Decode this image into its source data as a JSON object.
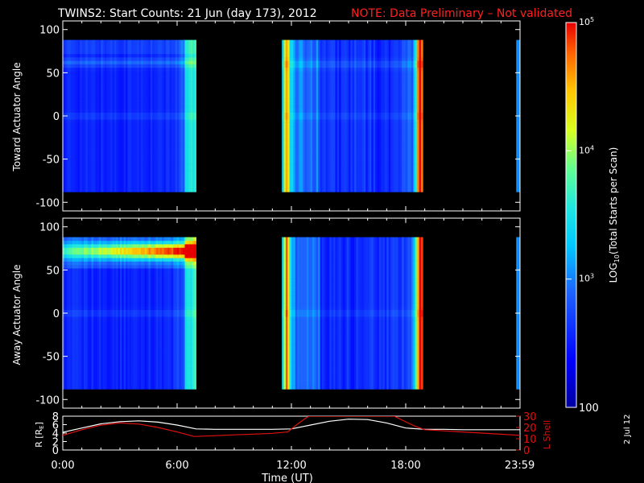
{
  "title": "TWINS2: Start Counts: 21 Jun (day 173), 2012",
  "note": "NOTE: Data Preliminary – Not validated",
  "date_stamp": "2 Jul 12",
  "colors": {
    "note": "#ff2020",
    "r_line": "#ffffff",
    "lshell_line": "#e01010",
    "background": "#000000",
    "frame": "#ffffff"
  },
  "colorbar": {
    "label": "LOG10(Total Starts per Scan)",
    "label_main": "LOG",
    "label_sub": "10",
    "label_rest": "(Total Starts per Scan)",
    "ticks": [
      {
        "value": 100,
        "label": "100"
      },
      {
        "value": 1000,
        "label": "10",
        "exp": "3"
      },
      {
        "value": 10000,
        "label": "10",
        "exp": "4"
      },
      {
        "value": 100000,
        "label": "10",
        "exp": "5"
      }
    ],
    "range": [
      100,
      100000
    ],
    "scale": "log"
  },
  "chart_data": [
    {
      "type": "heatmap",
      "panel": "toward",
      "ylabel": "Toward Actuator Angle",
      "ylim": [
        -110,
        110
      ],
      "yticks": [
        "100",
        "50",
        "0",
        "-50",
        "-100"
      ],
      "xlim": [
        0,
        24
      ],
      "angle_range": [
        -88,
        88
      ],
      "data_intervals": [
        {
          "start": 0.0,
          "end": 7.0
        },
        {
          "start": 11.5,
          "end": 18.9
        },
        {
          "start": 23.8,
          "end": 24.0
        }
      ],
      "log_counts": [
        {
          "time": 0.0,
          "angle": 0,
          "value": 2.6
        },
        {
          "time": 1.5,
          "angle": 60,
          "value": 2.9
        },
        {
          "time": 6.5,
          "angle": 0,
          "value": 3.2
        },
        {
          "time": 11.7,
          "angle": 0,
          "value": 4.6
        },
        {
          "time": 15.0,
          "angle": 0,
          "value": 2.6
        },
        {
          "time": 18.8,
          "angle": 0,
          "value": 4.7
        },
        {
          "time": 23.9,
          "angle": 0,
          "value": 3.0
        }
      ]
    },
    {
      "type": "heatmap",
      "panel": "away",
      "ylabel": "Away Actuator Angle",
      "ylim": [
        -110,
        110
      ],
      "yticks": [
        "100",
        "50",
        "0",
        "-50",
        "-100"
      ],
      "xlim": [
        0,
        24
      ],
      "angle_range": [
        -88,
        88
      ],
      "data_intervals": [
        {
          "start": 0.0,
          "end": 7.0
        },
        {
          "start": 11.5,
          "end": 18.9
        },
        {
          "start": 23.8,
          "end": 24.0
        }
      ],
      "log_counts": [
        {
          "time": 0.0,
          "angle": 80,
          "value": 3.5
        },
        {
          "time": 4.5,
          "angle": 70,
          "value": 4.4
        },
        {
          "time": 3.0,
          "angle": 0,
          "value": 2.6
        },
        {
          "time": 11.7,
          "angle": 0,
          "value": 4.6
        },
        {
          "time": 15.0,
          "angle": -20,
          "value": 2.5
        },
        {
          "time": 18.8,
          "angle": 50,
          "value": 4.5
        },
        {
          "time": 23.9,
          "angle": 0,
          "value": 3.1
        }
      ]
    },
    {
      "type": "line",
      "panel": "orbit",
      "ylabel_left": "R [RE]",
      "ylabel_left_main": "R [R",
      "ylabel_left_sub": "E",
      "ylabel_left_end": "]",
      "ylabel_right": "L Shell",
      "xlabel": "Time (UT)",
      "xlim": [
        0,
        24
      ],
      "xticks": [
        "0:00",
        "6:00",
        "12:00",
        "18:00",
        "23:59"
      ],
      "ylim_left": [
        0,
        8
      ],
      "yticks_left": [
        "0",
        "2",
        "4",
        "6",
        "8"
      ],
      "ylim_right": [
        0,
        30
      ],
      "yticks_right": [
        "0",
        "10",
        "20",
        "30"
      ],
      "series": [
        {
          "axis": "left",
          "x": [
            0,
            1,
            2,
            3,
            4,
            5,
            6,
            7,
            8,
            9,
            10,
            11,
            12,
            13,
            14,
            15,
            16,
            17,
            18,
            19,
            20,
            21,
            22,
            23,
            24
          ],
          "values": [
            4.2,
            5.2,
            6.2,
            6.7,
            6.9,
            6.6,
            5.9,
            5.0,
            4.9,
            4.9,
            4.9,
            4.9,
            5.0,
            5.9,
            6.8,
            7.3,
            7.2,
            6.4,
            5.2,
            4.9,
            4.9,
            4.8,
            4.8,
            4.8,
            4.8
          ]
        },
        {
          "axis": "right",
          "x": [
            0,
            1,
            2,
            3,
            4,
            5,
            6,
            6.9,
            8,
            9,
            10,
            11,
            11.8,
            12.4,
            12.9,
            17.4,
            18,
            18.5,
            19,
            20,
            21,
            22,
            23,
            24
          ],
          "values": [
            13,
            18,
            22,
            24,
            23,
            20,
            16,
            12,
            12.7,
            13.4,
            14.1,
            14.8,
            16,
            24,
            30,
            30,
            25,
            21,
            18,
            17,
            16,
            15,
            14,
            13
          ]
        }
      ]
    }
  ]
}
